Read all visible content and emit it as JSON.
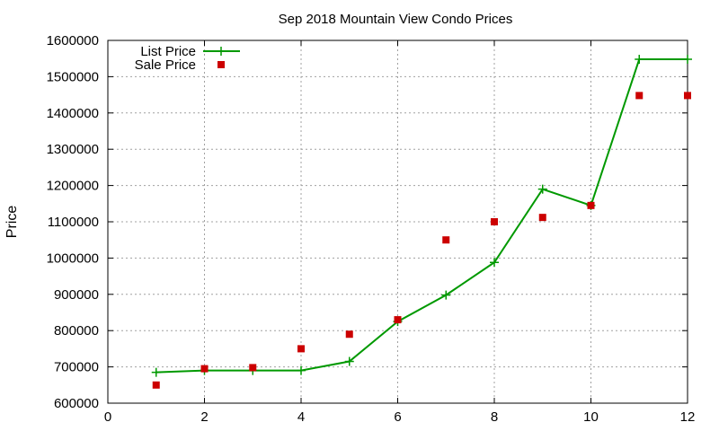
{
  "chart_data": {
    "type": "line",
    "title": "Sep 2018 Mountain View Condo Prices",
    "xlabel": "",
    "ylabel": "Price",
    "xlim": [
      0,
      12
    ],
    "ylim": [
      600000,
      1600000
    ],
    "xticks": [
      0,
      2,
      4,
      6,
      8,
      10,
      12
    ],
    "yticks": [
      600000,
      700000,
      800000,
      900000,
      1000000,
      1100000,
      1200000,
      1300000,
      1400000,
      1500000,
      1600000
    ],
    "grid": true,
    "legend_position": "top-left",
    "series": [
      {
        "name": "List Price",
        "style": "line-with-plus-markers",
        "color": "#009900",
        "x": [
          1,
          2,
          3,
          4,
          5,
          6,
          7,
          8,
          9,
          10,
          11,
          12
        ],
        "y": [
          685000,
          690000,
          690000,
          690000,
          715000,
          825000,
          898000,
          988000,
          1190000,
          1145000,
          1548000,
          1548000
        ]
      },
      {
        "name": "Sale Price",
        "style": "square-markers",
        "color": "#cc0000",
        "x": [
          1,
          2,
          3,
          4,
          5,
          6,
          7,
          8,
          9,
          10,
          11,
          12
        ],
        "y": [
          650000,
          695000,
          698000,
          750000,
          790000,
          830000,
          1050000,
          1100000,
          1112000,
          1145000,
          1448000,
          1448000
        ]
      }
    ]
  }
}
